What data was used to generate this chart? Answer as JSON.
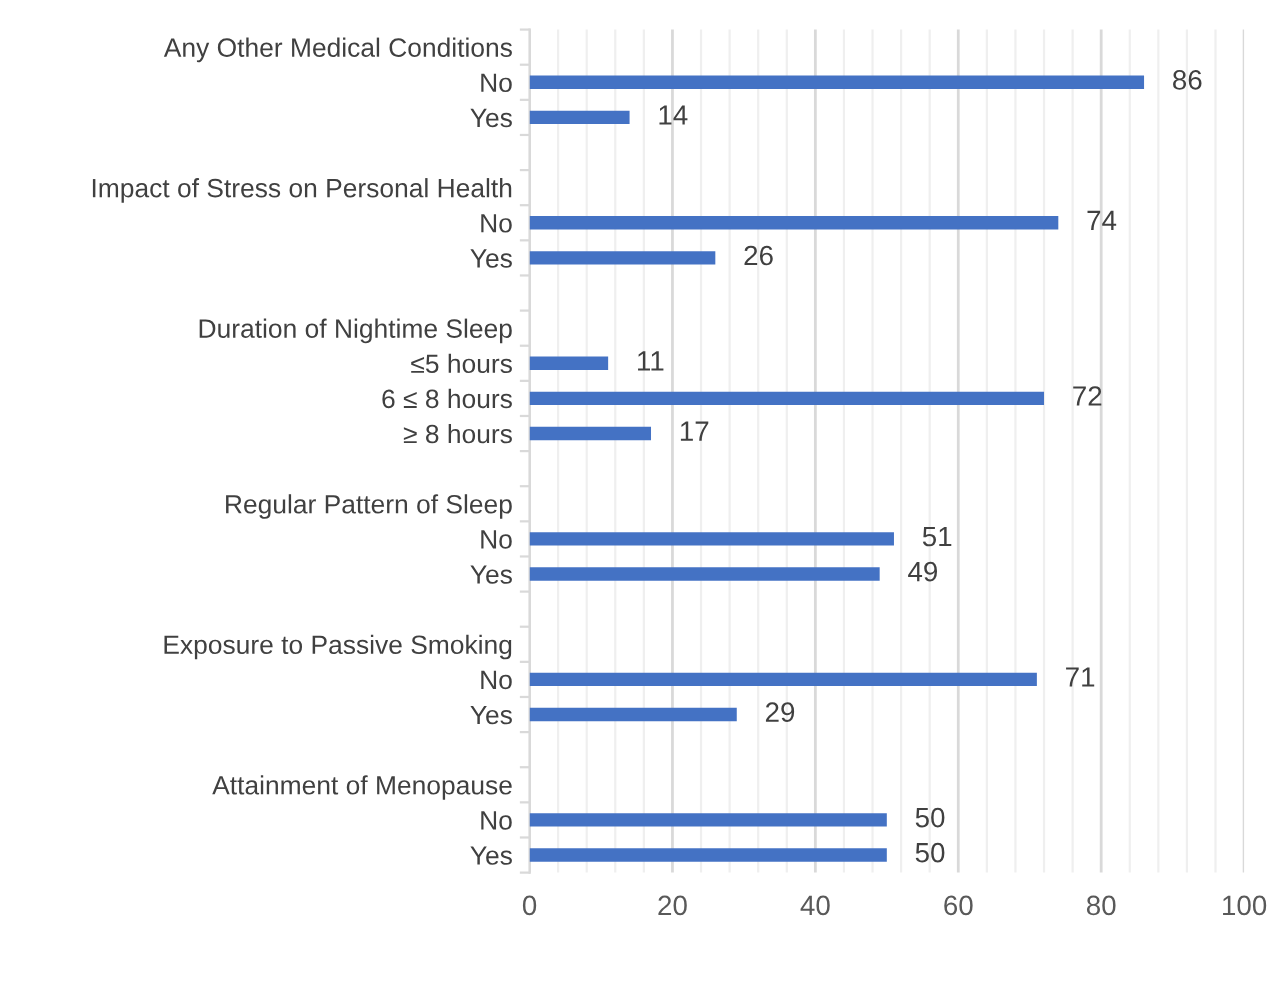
{
  "chart_data": {
    "type": "bar",
    "orientation": "horizontal",
    "categories": [
      "Any Other Medical Conditions",
      "No",
      "Yes",
      null,
      "Impact of Stress on Personal Health",
      "No",
      "Yes",
      null,
      "Duration of Nightime Sleep",
      "≤5 hours",
      "6 ≤ 8 hours",
      "≥ 8 hours",
      null,
      "Regular Pattern of Sleep",
      "No",
      "Yes",
      null,
      "Exposure to Passive Smoking",
      "No",
      "Yes",
      null,
      "Attainment of Menopause",
      "No",
      "Yes"
    ],
    "values": [
      null,
      86,
      14,
      null,
      null,
      74,
      26,
      null,
      null,
      11,
      72,
      17,
      null,
      null,
      51,
      49,
      null,
      null,
      71,
      29,
      null,
      null,
      50,
      50
    ],
    "color": "#4472c4",
    "data_labels": true,
    "xlim": [
      0,
      100
    ],
    "xticks": [
      0,
      20,
      40,
      60,
      80,
      100
    ],
    "grid": "x",
    "legend": false
  }
}
